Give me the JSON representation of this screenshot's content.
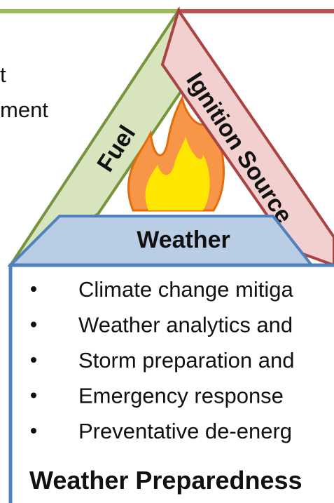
{
  "top_text": {
    "lines": [
      "t",
      "ment"
    ]
  },
  "triangle": {
    "left": "Fuel",
    "right": "Ignition Source",
    "base": "Weather"
  },
  "box": {
    "bullets": [
      "Climate change mitiga",
      "Weather analytics and",
      "Storm preparation and",
      "Emergency response",
      "Preventative de-energ"
    ],
    "heading": "Weather Preparedness"
  }
}
